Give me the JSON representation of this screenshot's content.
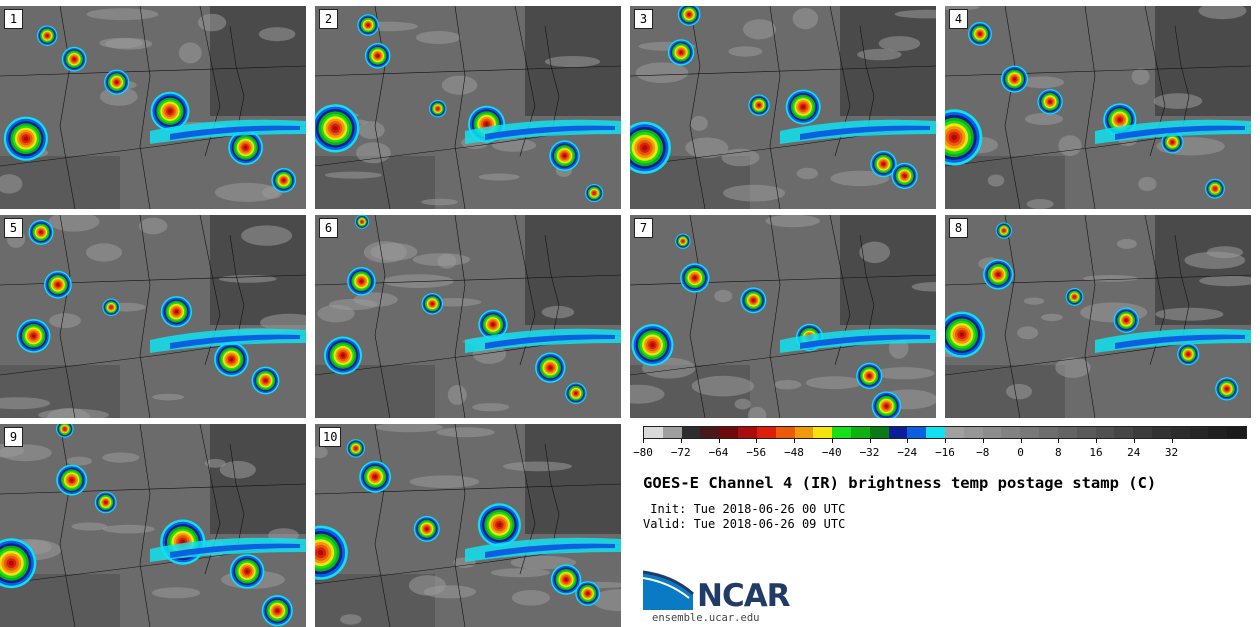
{
  "panels": [
    {
      "label": "1"
    },
    {
      "label": "2"
    },
    {
      "label": "3"
    },
    {
      "label": "4"
    },
    {
      "label": "5"
    },
    {
      "label": "6"
    },
    {
      "label": "7"
    },
    {
      "label": "8"
    },
    {
      "label": "9"
    },
    {
      "label": "10"
    }
  ],
  "colorbar": {
    "colors": [
      "#d9d9d9",
      "#9e9e9e",
      "#2e2e2e",
      "#4a1818",
      "#6e0a0a",
      "#a80c0c",
      "#dc1e0a",
      "#ea5a0a",
      "#f09a0a",
      "#f5e40a",
      "#18e018",
      "#10b010",
      "#0a7a14",
      "#0a1e9a",
      "#0a60e0",
      "#10e0f0",
      "#a0a0a0",
      "#969696",
      "#8c8c8c",
      "#828282",
      "#787878",
      "#6e6e6e",
      "#646464",
      "#5a5a5a",
      "#505050",
      "#464646",
      "#3c3c3c",
      "#323232",
      "#2c2c2c",
      "#262626",
      "#202020",
      "#1a1a1a"
    ],
    "ticks": [
      "−80",
      "−72",
      "−64",
      "−56",
      "−48",
      "−40",
      "−32",
      "−24",
      "−16",
      "−8",
      "0",
      "8",
      "16",
      "24",
      "32"
    ]
  },
  "title": "GOES-E Channel 4 (IR) brightness temp postage stamp (C)",
  "init_line": " Init: Tue 2018-06-26 00 UTC",
  "valid_line": "Valid: Tue 2018-06-26 09 UTC",
  "logo_text": "NCAR",
  "url": "ensemble.ucar.edu"
}
